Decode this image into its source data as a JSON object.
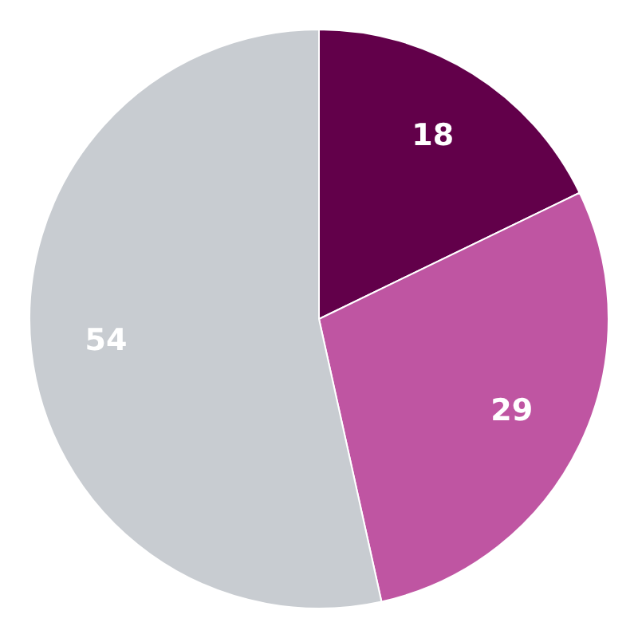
{
  "chart_data": {
    "type": "pie",
    "categories": [
      null,
      null,
      null
    ],
    "values": [
      18,
      29,
      54
    ],
    "colors": [
      "#62004a",
      "#bf55a2",
      "#c8ccd1"
    ],
    "data_labels": true,
    "legend": false
  }
}
